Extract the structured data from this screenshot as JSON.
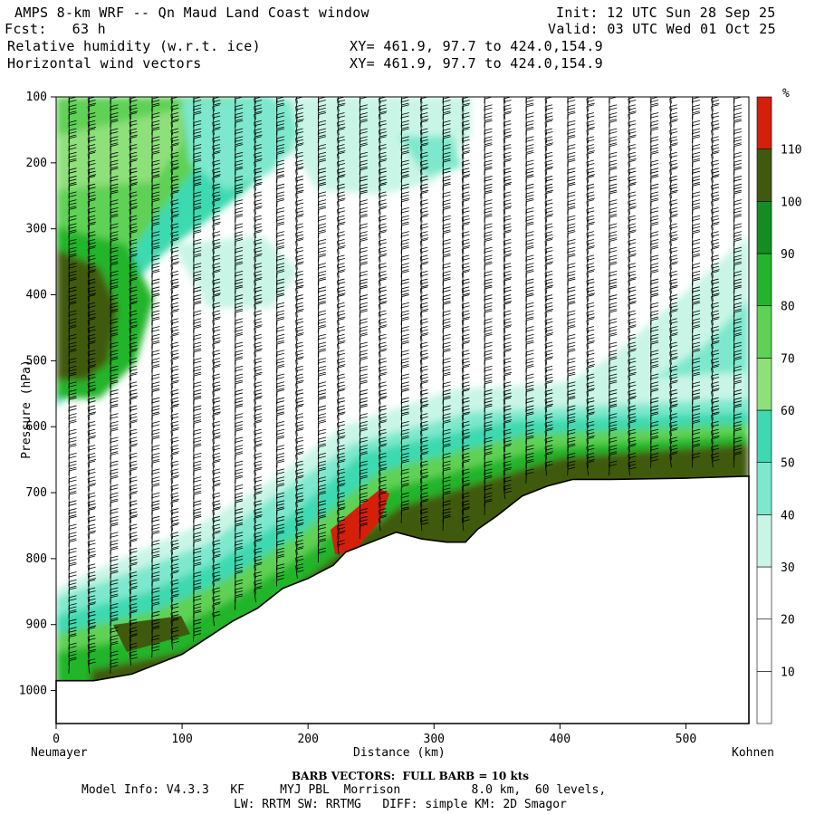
{
  "header": {
    "title": "AMPS 8-km WRF -- Qn Maud Land Coast window",
    "init": "Init: 12 UTC Sun 28 Sep 25",
    "fcst": "Fcst:   63 h",
    "valid": "Valid: 03 UTC Wed 01 Oct 25",
    "field1": "Relative humidity (w.r.t. ice)",
    "field1_xy": "XY= 461.9, 97.7 to 424.0,154.9",
    "field2": "Horizontal wind vectors",
    "field2_xy": "XY= 461.9, 97.7 to 424.0,154.9"
  },
  "footer": {
    "barb": "BARB VECTORS:  FULL BARB = 10 kts",
    "model1": "Model Info: V4.3.3   KF     MYJ PBL  Morrison          8.0 km,  60 levels,",
    "model2": "LW: RRTM SW: RRTMG   DIFF: simple KM: 2D Smagor"
  },
  "chart_data": {
    "type": "heatmap",
    "xlabel": "Distance (km)",
    "ylabel": "Pressure (hPa)",
    "x_left_label": "Neumayer",
    "x_right_label": "Kohnen",
    "xlim": [
      0,
      550
    ],
    "ylim": [
      1050,
      100
    ],
    "xticks": [
      0,
      100,
      200,
      300,
      400,
      500
    ],
    "yticks": [
      100,
      200,
      300,
      400,
      500,
      600,
      700,
      800,
      900,
      1000
    ],
    "colorbar": {
      "unit": "%",
      "levels": [
        10,
        20,
        30,
        40,
        50,
        60,
        70,
        80,
        90,
        100,
        110
      ],
      "colors": [
        "#ffffff",
        "#ffffff",
        "#ffffff",
        "#c8f5e6",
        "#7de8cd",
        "#3ed9b0",
        "#8ee07a",
        "#5fd155",
        "#22b52b",
        "#138c24",
        "#3f5a0d",
        "#d4200a"
      ]
    },
    "terrain": [
      [
        0,
        985
      ],
      [
        30,
        985
      ],
      [
        60,
        975
      ],
      [
        80,
        960
      ],
      [
        100,
        945
      ],
      [
        120,
        920
      ],
      [
        140,
        895
      ],
      [
        160,
        875
      ],
      [
        180,
        845
      ],
      [
        200,
        830
      ],
      [
        210,
        820
      ],
      [
        220,
        810
      ],
      [
        230,
        790
      ],
      [
        250,
        775
      ],
      [
        270,
        760
      ],
      [
        290,
        770
      ],
      [
        310,
        775
      ],
      [
        325,
        775
      ],
      [
        335,
        755
      ],
      [
        350,
        735
      ],
      [
        370,
        705
      ],
      [
        390,
        690
      ],
      [
        410,
        680
      ],
      [
        440,
        680
      ],
      [
        500,
        678
      ],
      [
        550,
        675
      ]
    ],
    "rh_regions": [
      {
        "label": "near-surface moist layer",
        "rh": 105
      },
      {
        "label": "upper-left moist core (~400 hPa)",
        "rh": 100
      },
      {
        "label": "embedded maximum (~750 hPa, 230-260 km)",
        "rh": 112
      }
    ]
  }
}
